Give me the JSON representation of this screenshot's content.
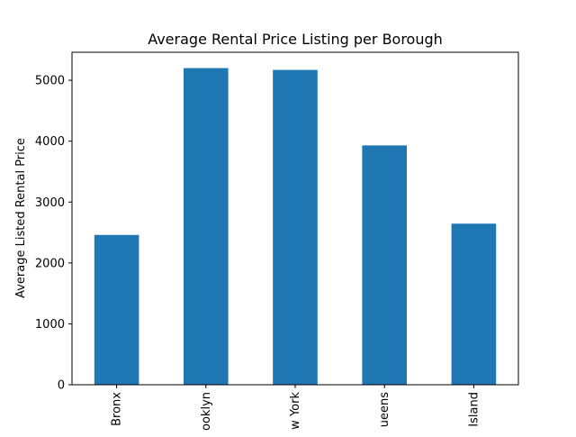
{
  "chart_data": {
    "type": "bar",
    "title": "Average Rental Price Listing per Borough",
    "xlabel": "",
    "ylabel": "Average Listed Rental Price",
    "categories": [
      "Bronx",
      "Brooklyn",
      "New York",
      "Queens",
      "Staten Island"
    ],
    "tick_labels_visible": [
      "Bronx",
      "ooklyn",
      "w York",
      "ueens",
      "Island"
    ],
    "values": [
      2460,
      5200,
      5170,
      3930,
      2645
    ],
    "ylim": [
      0,
      5460
    ],
    "yticks": [
      0,
      1000,
      2000,
      3000,
      4000,
      5000
    ],
    "ytick_labels": [
      "0",
      "1000",
      "2000",
      "3000",
      "4000",
      "5000"
    ],
    "grid": false,
    "legend": "none",
    "bar_color": "#1f77b4"
  }
}
